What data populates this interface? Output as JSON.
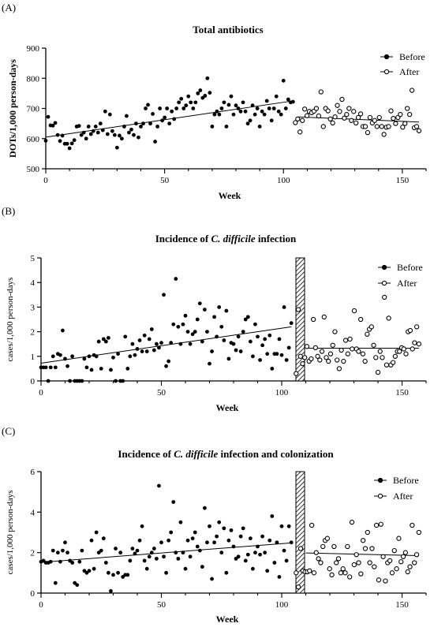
{
  "chart_data": [
    {
      "panel": "(A)",
      "type": "scatter",
      "title": "Total antibiotics",
      "title_italic": "",
      "title_suffix": "",
      "xlabel": "Week",
      "ylabel": "DOTs/1,000 person-days",
      "xlim": [
        0,
        160
      ],
      "ylim": [
        500,
        900
      ],
      "xticks": [
        "0",
        "50",
        "100",
        "150"
      ],
      "yticks": [
        "500",
        "600",
        "700",
        "800",
        "900"
      ],
      "intervention_band": false,
      "legend": [
        "Before",
        "After"
      ],
      "trend_lines": {
        "before": {
          "x": [
            0,
            104
          ],
          "y": [
            605,
            725
          ]
        },
        "after": {
          "x": [
            106,
            157
          ],
          "y": [
            672,
            655
          ]
        }
      },
      "series": [
        {
          "name": "Before",
          "marker": "filled",
          "y": [
            593,
            672,
            644,
            643,
            652,
            612,
            592,
            610,
            583,
            583,
            568,
            584,
            595,
            640,
            642,
            612,
            620,
            600,
            640,
            615,
            625,
            640,
            620,
            650,
            628,
            690,
            615,
            680,
            625,
            612,
            570,
            610,
            600,
            640,
            675,
            620,
            630,
            612,
            650,
            604,
            640,
            650,
            700,
            712,
            650,
            682,
            590,
            640,
            700,
            660,
            670,
            700,
            650,
            690,
            665,
            700,
            720,
            732,
            700,
            710,
            740,
            720,
            700,
            720,
            750,
            760,
            735,
            742,
            800,
            752,
            640,
            680,
            690,
            680,
            700,
            720,
            640,
            712,
            740,
            680,
            710,
            700,
            690,
            720,
            690,
            650,
            660,
            710,
            680,
            700,
            640,
            690,
            680,
            725,
            700,
            660,
            700,
            740,
            690,
            680,
            792,
            700,
            730,
            720,
            722
          ]
        },
        {
          "name": "After",
          "marker": "open",
          "y": [
            653,
            665,
            622,
            660,
            698,
            676,
            690,
            686,
            691,
            700,
            675,
            755,
            640,
            700,
            692,
            665,
            652,
            672,
            710,
            690,
            730,
            668,
            680,
            700,
            660,
            690,
            652,
            670,
            682,
            640,
            640,
            620,
            670,
            652,
            660,
            640,
            670,
            640,
            614,
            638,
            640,
            692,
            667,
            650,
            670,
            680,
            638,
            650,
            700,
            680,
            760,
            636,
            640,
            626
          ]
        }
      ]
    },
    {
      "panel": "(B)",
      "type": "scatter",
      "title": "Incidence of ",
      "title_italic": "C. difficile",
      "title_suffix": " infection",
      "xlabel": "Week",
      "ylabel": "cases/1,000 person-days",
      "xlim": [
        0,
        160
      ],
      "ylim": [
        0,
        5
      ],
      "xticks": [
        "0",
        "50",
        "100",
        "150"
      ],
      "yticks": [
        "0",
        "1",
        "2",
        "3",
        "4",
        "5"
      ],
      "intervention_band": true,
      "legend": [
        "Before",
        "After"
      ],
      "trend_lines": {
        "before": {
          "x": [
            0,
            104
          ],
          "y": [
            0.72,
            2.2
          ]
        },
        "after": {
          "x": [
            110,
            157
          ],
          "y": [
            1.33,
            1.33
          ]
        }
      },
      "series": [
        {
          "name": "Before",
          "marker": "filled",
          "y": [
            0.55,
            0.55,
            0.55,
            0,
            0.55,
            1.0,
            0.55,
            1.1,
            1.05,
            2.05,
            0.9,
            0.6,
            0,
            1.0,
            0,
            0,
            0,
            0,
            0.9,
            0.55,
            1.0,
            0.45,
            1.05,
            1.0,
            1.6,
            0.5,
            1.7,
            1.6,
            1.75,
            0.45,
            0.95,
            0,
            1.1,
            0,
            0,
            1.8,
            0.5,
            1.0,
            1.5,
            1.05,
            1.3,
            1.65,
            1.2,
            1.85,
            1.2,
            1.7,
            2.1,
            1.25,
            1.5,
            1.35,
            1.55,
            3.5,
            0.6,
            0.8,
            1.55,
            2.3,
            4.15,
            2.2,
            1.5,
            2.3,
            2.65,
            2.0,
            1.5,
            1.9,
            2.0,
            2.5,
            3.15,
            1.6,
            2.9,
            2.0,
            0.7,
            1.2,
            2.6,
            1.8,
            3.0,
            2.2,
            1.65,
            2.85,
            0.9,
            1.55,
            1.5,
            1.25,
            1.8,
            1.2,
            2.0,
            2.5,
            2.6,
            1.6,
            1.0,
            2.3,
            1.8,
            0.85,
            1.45,
            1.7,
            1.1,
            1.85,
            0.5,
            1.1,
            1.1,
            1.7,
            1.05,
            3.0,
            0.85,
            1.35,
            2.35
          ]
        },
        {
          "name": "After",
          "marker": "open",
          "y": [
            0.3,
            2.9,
            1.0,
            0.7,
            0.95,
            1.4,
            0.8,
            0.9,
            2.5,
            1.35,
            1.0,
            0.85,
            1.2,
            2.6,
            0.95,
            0.8,
            1.1,
            1.45,
            2.0,
            0.85,
            0.5,
            1.25,
            0.8,
            1.65,
            1.1,
            1.7,
            1.3,
            2.85,
            1.3,
            1.2,
            2.5,
            1.1,
            0.8,
            1.9,
            2.1,
            2.2,
            1.45,
            0.95,
            0.35,
            1.2,
            0.95,
            3.4,
            0.65,
            2.55,
            0.65,
            0.75,
            1.0,
            1.2,
            1.2,
            1.35,
            1.3,
            1.1,
            2.0,
            2.05,
            1.3,
            1.55,
            2.2,
            1.5
          ]
        }
      ]
    },
    {
      "panel": "(C)",
      "type": "scatter",
      "title": "Incidence of ",
      "title_italic": "C. difficile",
      "title_suffix": " infection and colonization",
      "xlabel": "Week",
      "ylabel": "cases/1,000 person-days",
      "xlim": [
        0,
        160
      ],
      "ylim": [
        0,
        6
      ],
      "xticks": [
        "0",
        "50",
        "100",
        "150"
      ],
      "yticks": [
        "0",
        "2",
        "4",
        "6"
      ],
      "intervention_band": true,
      "legend": [
        "Before",
        "After"
      ],
      "trend_lines": {
        "before": {
          "x": [
            0,
            104
          ],
          "y": [
            1.52,
            2.48
          ]
        },
        "after": {
          "x": [
            110,
            157
          ],
          "y": [
            1.98,
            1.85
          ]
        }
      },
      "series": [
        {
          "name": "Before",
          "marker": "filled",
          "y": [
            1.55,
            1.6,
            1.5,
            1.5,
            1.55,
            2.1,
            0.5,
            2.0,
            1.55,
            2.1,
            2.5,
            2.0,
            1.6,
            1.5,
            0.5,
            0.4,
            1.55,
            2.1,
            1.1,
            1.0,
            1.1,
            2.6,
            1.2,
            3.0,
            2.0,
            2.1,
            2.7,
            1.5,
            1.0,
            0.1,
            0.9,
            2.2,
            1.0,
            2.0,
            0.8,
            0.9,
            0.9,
            1.6,
            2.2,
            1.95,
            2.1,
            2.6,
            3.3,
            1.6,
            1.2,
            1.8,
            2.0,
            2.2,
            1.7,
            5.3,
            2.5,
            1.8,
            1.0,
            2.6,
            3.0,
            4.5,
            2.0,
            1.7,
            3.5,
            2.0,
            1.2,
            2.6,
            1.8,
            2.7,
            3.0,
            2.3,
            2.1,
            1.3,
            4.2,
            2.5,
            3.3,
            0.7,
            2.5,
            2.8,
            3.5,
            2.0,
            3.2,
            1.0,
            2.6,
            3.1,
            2.3,
            1.7,
            1.8,
            2.8,
            3.2,
            1.6,
            1.9,
            2.7,
            1.2,
            2.0,
            2.3,
            1.9,
            2.8,
            2.0,
            1.1,
            2.6,
            3.8,
            1.5,
            2.5,
            0.8,
            3.3,
            2.1,
            1.6,
            3.3,
            2.5
          ]
        },
        {
          "name": "After",
          "marker": "open",
          "y": [
            1.0,
            0.3,
            2.2,
            1.1,
            1.05,
            1.05,
            1.1,
            3.35,
            1.0,
            2.0,
            1.7,
            1.5,
            2.3,
            2.6,
            2.7,
            1.2,
            0.9,
            2.3,
            1.5,
            1.7,
            1.0,
            1.2,
            1.0,
            2.3,
            0.8,
            3.5,
            1.4,
            1.9,
            1.5,
            0.95,
            2.6,
            2.2,
            3.0,
            1.5,
            2.2,
            1.3,
            3.35,
            0.65,
            3.4,
            1.8,
            0.6,
            1.5,
            1.6,
            1.0,
            2.1,
            1.2,
            2.7,
            1.55,
            1.8,
            2.0,
            1.05,
            1.3,
            3.35,
            1.5,
            1.9,
            3.0
          ]
        }
      ]
    }
  ]
}
